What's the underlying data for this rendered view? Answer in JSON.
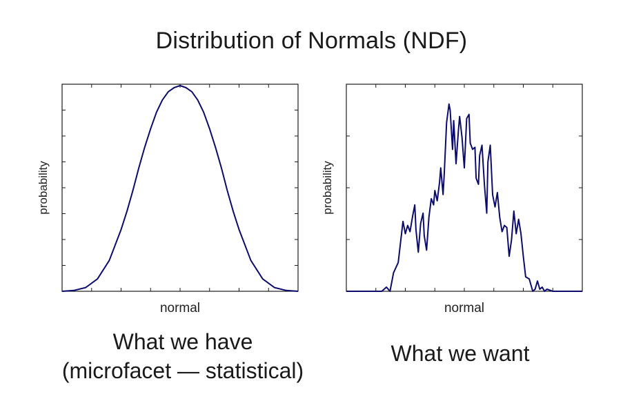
{
  "slide": {
    "title": "Distribution of Normals (NDF)"
  },
  "captions": {
    "left": [
      "What we have",
      "(microfacet — statistical)"
    ],
    "right": "What we want"
  },
  "colors": {
    "line": "#0b0b6e",
    "frame": "#1a1a1a"
  },
  "chart_data": [
    {
      "type": "line",
      "title": "",
      "xlabel": "normal",
      "ylabel": "probability",
      "xlim": [
        -1,
        1
      ],
      "ylim": [
        0,
        1
      ],
      "grid": false,
      "series": [
        {
          "x": [
            -1,
            -0.9,
            -0.8,
            -0.7,
            -0.6,
            -0.5,
            -0.45,
            -0.4,
            -0.35,
            -0.3,
            -0.25,
            -0.2,
            -0.15,
            -0.1,
            -0.05,
            0,
            0.05,
            0.1,
            0.15,
            0.2,
            0.25,
            0.3,
            0.35,
            0.4,
            0.45,
            0.5,
            0.6,
            0.7,
            0.8,
            0.9,
            1
          ],
          "y": [
            0.0,
            0.004,
            0.018,
            0.06,
            0.15,
            0.3,
            0.39,
            0.49,
            0.6,
            0.7,
            0.79,
            0.87,
            0.93,
            0.97,
            0.99,
            1.0,
            0.99,
            0.97,
            0.93,
            0.87,
            0.79,
            0.7,
            0.6,
            0.49,
            0.39,
            0.3,
            0.15,
            0.06,
            0.018,
            0.004,
            0.0
          ]
        }
      ]
    },
    {
      "type": "line",
      "title": "",
      "xlabel": "normal",
      "ylabel": "probability",
      "xlim": [
        -1,
        1
      ],
      "ylim": [
        0,
        1
      ],
      "grid": false,
      "series": [
        {
          "x": [
            -1,
            -0.7,
            -0.66,
            -0.63,
            -0.6,
            -0.56,
            -0.52,
            -0.5,
            -0.48,
            -0.46,
            -0.44,
            -0.42,
            -0.41,
            -0.39,
            -0.37,
            -0.35,
            -0.34,
            -0.32,
            -0.3,
            -0.28,
            -0.26,
            -0.25,
            -0.23,
            -0.21,
            -0.2,
            -0.18,
            -0.17,
            -0.15,
            -0.13,
            -0.12,
            -0.1,
            -0.09,
            -0.07,
            -0.05,
            -0.04,
            -0.02,
            0.0,
            0.02,
            0.04,
            0.05,
            0.07,
            0.09,
            0.1,
            0.12,
            0.13,
            0.15,
            0.17,
            0.19,
            0.2,
            0.22,
            0.24,
            0.26,
            0.28,
            0.3,
            0.32,
            0.34,
            0.36,
            0.38,
            0.4,
            0.42,
            0.44,
            0.46,
            0.48,
            0.5,
            0.52,
            0.55,
            0.58,
            0.6,
            0.62,
            0.64,
            0.66,
            0.68,
            0.7,
            0.75,
            0.8,
            1
          ],
          "y": [
            0.0,
            0.0,
            0.02,
            0.0,
            0.09,
            0.14,
            0.34,
            0.28,
            0.32,
            0.29,
            0.36,
            0.42,
            0.3,
            0.19,
            0.33,
            0.38,
            0.27,
            0.2,
            0.36,
            0.45,
            0.42,
            0.49,
            0.44,
            0.53,
            0.6,
            0.47,
            0.57,
            0.82,
            0.91,
            0.88,
            0.69,
            0.83,
            0.62,
            0.78,
            0.85,
            0.75,
            0.6,
            0.84,
            0.86,
            0.72,
            0.69,
            0.7,
            0.55,
            0.52,
            0.66,
            0.71,
            0.52,
            0.38,
            0.63,
            0.71,
            0.47,
            0.41,
            0.48,
            0.36,
            0.29,
            0.32,
            0.31,
            0.17,
            0.25,
            0.39,
            0.28,
            0.35,
            0.28,
            0.17,
            0.07,
            0.06,
            0.0,
            0.01,
            0.05,
            0.01,
            0.02,
            0.0,
            0.01,
            0.0,
            0.0,
            0.0
          ]
        }
      ]
    }
  ]
}
